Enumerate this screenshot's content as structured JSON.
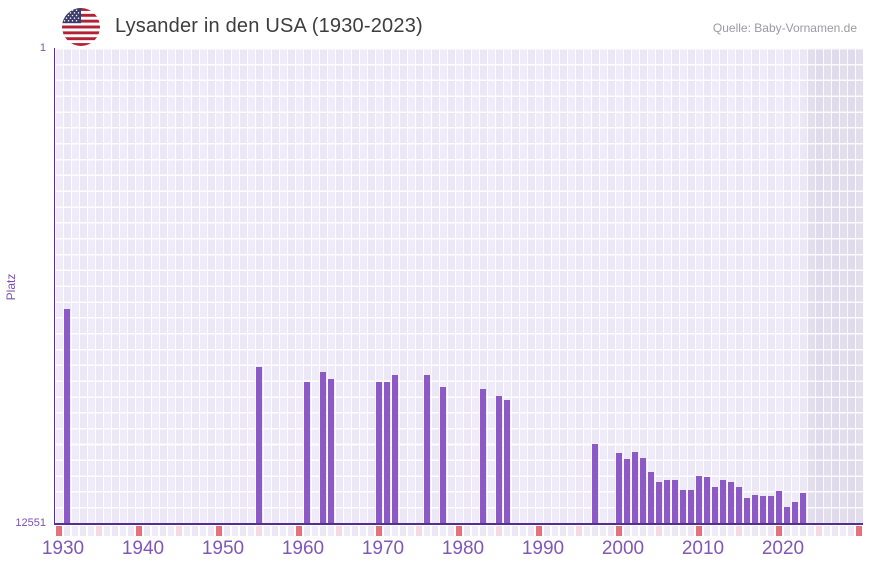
{
  "header": {
    "title": "Lysander in den USA (1930-2023)",
    "source": "Quelle: Baby-Vornamen.de",
    "flag_icon": "us-flag-icon"
  },
  "chart_data": {
    "type": "bar",
    "title": "Lysander in den USA (1930-2023)",
    "ylabel": "Platz",
    "xlabel": "",
    "y_axis": {
      "top_tick_label": "1",
      "bottom_tick_label": "12551",
      "min": 1,
      "max": 12551,
      "inverted": true,
      "scale": "linear"
    },
    "x_axis": {
      "start_year": 1930,
      "end_year": 2030,
      "data_end_year": 2023,
      "future_band_start_year": 2024,
      "tick_labels": [
        "1930",
        "1940",
        "1950",
        "1960",
        "1970",
        "1980",
        "1990",
        "2000",
        "2010",
        "2020"
      ],
      "decade_tick_years": [
        1930,
        1940,
        1950,
        1960,
        1970,
        1980,
        1990,
        2000,
        2010,
        2020,
        2030
      ],
      "half_decade_tick_years": [
        1935,
        1945,
        1955,
        1965,
        1975,
        1985,
        1995,
        2005,
        2015,
        2025
      ]
    },
    "grid": true,
    "legend": "none",
    "series": [
      {
        "year": 1931,
        "rank": 6890
      },
      {
        "year": 1955,
        "rank": 8430
      },
      {
        "year": 1961,
        "rank": 8820
      },
      {
        "year": 1963,
        "rank": 8550
      },
      {
        "year": 1964,
        "rank": 8750
      },
      {
        "year": 1970,
        "rank": 8820
      },
      {
        "year": 1971,
        "rank": 8820
      },
      {
        "year": 1972,
        "rank": 8640
      },
      {
        "year": 1976,
        "rank": 8640
      },
      {
        "year": 1978,
        "rank": 8960
      },
      {
        "year": 1983,
        "rank": 9010
      },
      {
        "year": 1985,
        "rank": 9200
      },
      {
        "year": 1986,
        "rank": 9310
      },
      {
        "year": 1997,
        "rank": 10470
      },
      {
        "year": 2000,
        "rank": 10700
      },
      {
        "year": 2001,
        "rank": 10870
      },
      {
        "year": 2002,
        "rank": 10680
      },
      {
        "year": 2003,
        "rank": 10830
      },
      {
        "year": 2004,
        "rank": 11200
      },
      {
        "year": 2005,
        "rank": 11480
      },
      {
        "year": 2006,
        "rank": 11420
      },
      {
        "year": 2007,
        "rank": 11420
      },
      {
        "year": 2008,
        "rank": 11690
      },
      {
        "year": 2009,
        "rank": 11690
      },
      {
        "year": 2010,
        "rank": 11320
      },
      {
        "year": 2011,
        "rank": 11330
      },
      {
        "year": 2012,
        "rank": 11610
      },
      {
        "year": 2013,
        "rank": 11410
      },
      {
        "year": 2014,
        "rank": 11470
      },
      {
        "year": 2015,
        "rank": 11590
      },
      {
        "year": 2016,
        "rank": 11880
      },
      {
        "year": 2017,
        "rank": 11810
      },
      {
        "year": 2018,
        "rank": 11840
      },
      {
        "year": 2019,
        "rank": 11840
      },
      {
        "year": 2020,
        "rank": 11710
      },
      {
        "year": 2021,
        "rank": 12120
      },
      {
        "year": 2022,
        "rank": 11990
      },
      {
        "year": 2023,
        "rank": 11770
      }
    ],
    "colors": {
      "bar": "#8c59c6",
      "axis_line": "#542e91",
      "axis_text": "#8157ba",
      "y_axis_text": "#7b52b0",
      "grid_cell": "#f0ebf8",
      "grid_cell_alt": "#ece7f5",
      "future_band_cell": "#e3deec",
      "decade_tick": "#e2737f",
      "half_decade_tick": "#f5d9e3",
      "title_text": "#3d3d3d",
      "source_text": "#9a9aa2",
      "flag_red": "#b22234",
      "flag_blue": "#3c3b6e"
    }
  }
}
